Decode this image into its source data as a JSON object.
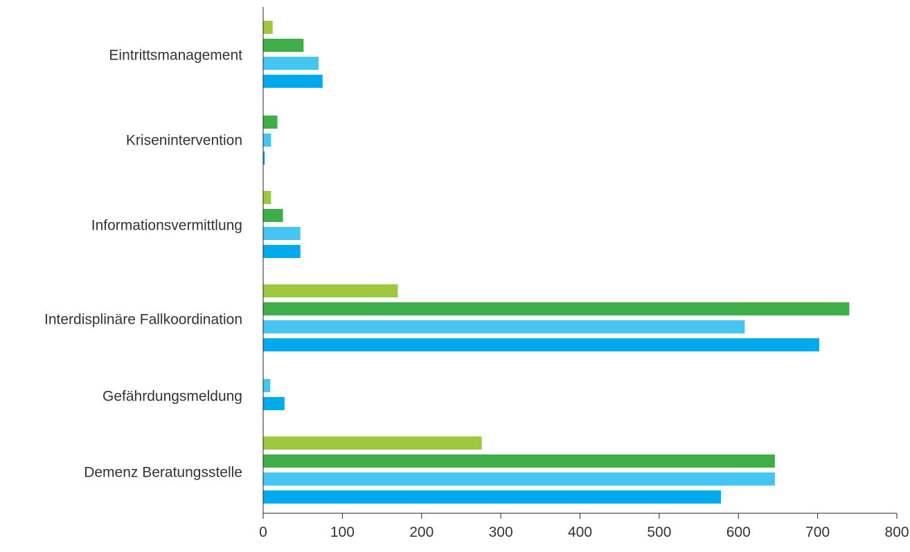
{
  "chart_data": {
    "type": "bar",
    "orientation": "horizontal",
    "title": "",
    "xlabel": "",
    "ylabel": "",
    "xlim": [
      0,
      800
    ],
    "xticks": [
      "0",
      "100",
      "200",
      "300",
      "400",
      "500",
      "600",
      "700",
      "800"
    ],
    "grid": false,
    "categories": [
      "Eintrittsmanagement",
      "Krisenintervention",
      "Informationsvermittlung",
      "Interdisplinäre Fallkoordination",
      "Gefährdungsmeldung",
      "Demenz Beratungsstelle"
    ],
    "series": [
      {
        "color": "#9dc83f",
        "values": [
          12,
          null,
          10,
          170,
          null,
          276
        ]
      },
      {
        "color": "#3fae49",
        "values": [
          51,
          18,
          25,
          740,
          null,
          646
        ]
      },
      {
        "color": "#45c6f2",
        "values": [
          70,
          10,
          47,
          608,
          9,
          646
        ]
      },
      {
        "color": "#00aaec",
        "values": [
          75,
          2,
          47,
          702,
          27,
          578
        ]
      }
    ]
  }
}
